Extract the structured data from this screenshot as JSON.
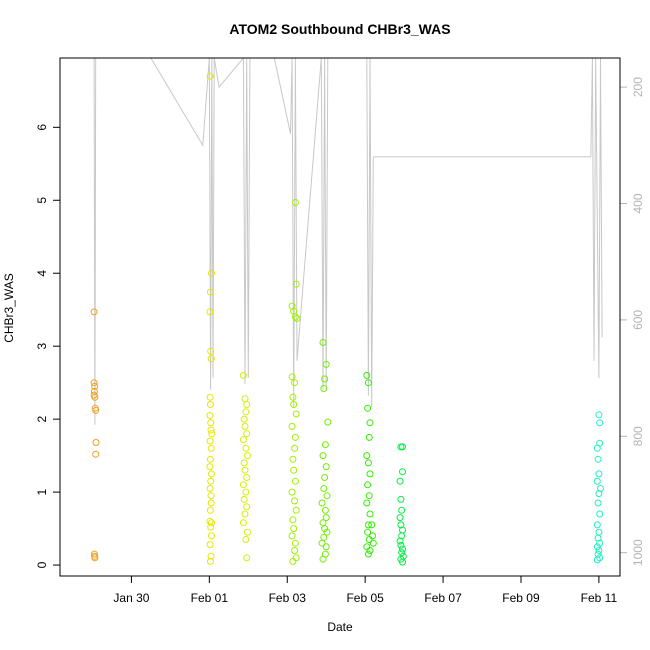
{
  "chart_data": {
    "type": "scatter",
    "title": "ATOM2 Southbound CHBr3_WAS",
    "xlabel": "Date",
    "ylabel": "CHBr3_WAS",
    "xlim": [
      "2016-01-28T04:00",
      "2016-02-11T13:00"
    ],
    "ylim": [
      -0.15,
      6.95
    ],
    "x_ticks": [
      {
        "date": "2016-01-30",
        "label": "Jan 30"
      },
      {
        "date": "2016-02-01",
        "label": "Feb 01"
      },
      {
        "date": "2016-02-03",
        "label": "Feb 03"
      },
      {
        "date": "2016-02-05",
        "label": "Feb 05"
      },
      {
        "date": "2016-02-07",
        "label": "Feb 07"
      },
      {
        "date": "2016-02-09",
        "label": "Feb 09"
      },
      {
        "date": "2016-02-11",
        "label": "Feb 11"
      }
    ],
    "y_ticks": [
      0,
      1,
      2,
      3,
      4,
      5,
      6
    ],
    "y2_axis": {
      "label": "",
      "range": [
        1040,
        150
      ],
      "ticks": [
        200,
        400,
        600,
        800,
        1000
      ],
      "color": "#b3b3b3"
    },
    "pressure_trace": {
      "color": "#c8c8c8",
      "points": [
        [
          "2016-01-29T01:00",
          150
        ],
        [
          "2016-01-29T01:30",
          780
        ],
        [
          "2016-01-29T02:00",
          150
        ],
        [
          "2016-01-30T12:00",
          150
        ],
        [
          "2016-01-31T20:00",
          300
        ],
        [
          "2016-02-01T00:00",
          150
        ],
        [
          "2016-02-01T00:45",
          720
        ],
        [
          "2016-02-01T01:30",
          150
        ],
        [
          "2016-02-01T02:15",
          700
        ],
        [
          "2016-02-01T03:00",
          150
        ],
        [
          "2016-02-01T06:00",
          200
        ],
        [
          "2016-02-01T21:00",
          150
        ],
        [
          "2016-02-01T22:00",
          710
        ],
        [
          "2016-02-01T23:00",
          150
        ],
        [
          "2016-02-02T00:00",
          700
        ],
        [
          "2016-02-02T01:00",
          150
        ],
        [
          "2016-02-02T16:00",
          150
        ],
        [
          "2016-02-03T02:00",
          280
        ],
        [
          "2016-02-03T03:00",
          150
        ],
        [
          "2016-02-03T04:00",
          750
        ],
        [
          "2016-02-03T05:00",
          150
        ],
        [
          "2016-02-03T06:00",
          670
        ],
        [
          "2016-02-03T21:00",
          150
        ],
        [
          "2016-02-03T22:00",
          720
        ],
        [
          "2016-02-03T23:00",
          150
        ],
        [
          "2016-02-04T00:00",
          720
        ],
        [
          "2016-02-04T01:00",
          150
        ],
        [
          "2016-02-05T01:00",
          150
        ],
        [
          "2016-02-05T02:00",
          730
        ],
        [
          "2016-02-05T03:00",
          150
        ],
        [
          "2016-02-05T04:00",
          750
        ],
        [
          "2016-02-05T05:00",
          320
        ],
        [
          "2016-02-10T19:00",
          320
        ],
        [
          "2016-02-10T20:00",
          150
        ],
        [
          "2016-02-10T21:00",
          670
        ],
        [
          "2016-02-10T22:00",
          150
        ],
        [
          "2016-02-11T00:00",
          700
        ],
        [
          "2016-02-11T01:00",
          150
        ],
        [
          "2016-02-11T02:00",
          630
        ]
      ]
    },
    "series": [
      {
        "color": "#f0a020",
        "points": [
          [
            "2016-01-29T01:00",
            3.47
          ],
          [
            "2016-01-29T01:00",
            2.5
          ],
          [
            "2016-01-29T01:20",
            2.45
          ],
          [
            "2016-01-29T01:10",
            2.38
          ],
          [
            "2016-01-29T01:00",
            2.33
          ],
          [
            "2016-01-29T01:30",
            2.3
          ],
          [
            "2016-01-29T01:40",
            2.15
          ],
          [
            "2016-01-29T02:00",
            2.12
          ],
          [
            "2016-01-29T02:10",
            1.68
          ],
          [
            "2016-01-29T02:00",
            1.52
          ],
          [
            "2016-01-29T01:10",
            0.15
          ],
          [
            "2016-01-29T01:20",
            0.12
          ],
          [
            "2016-01-29T01:30",
            0.1
          ]
        ]
      },
      {
        "color": "#e6e600",
        "points": [
          [
            "2016-02-01T00:30",
            6.7
          ],
          [
            "2016-02-01T01:20",
            4.0
          ],
          [
            "2016-02-01T00:40",
            3.74
          ],
          [
            "2016-02-01T00:20",
            3.47
          ],
          [
            "2016-02-01T00:50",
            2.93
          ],
          [
            "2016-02-01T01:10",
            2.83
          ],
          [
            "2016-02-01T00:30",
            2.3
          ],
          [
            "2016-02-01T00:40",
            2.2
          ],
          [
            "2016-02-01T00:20",
            2.05
          ],
          [
            "2016-02-01T00:50",
            1.95
          ],
          [
            "2016-02-01T01:00",
            1.85
          ],
          [
            "2016-02-01T00:30",
            1.7
          ],
          [
            "2016-02-01T01:10",
            1.6
          ],
          [
            "2016-02-01T00:40",
            1.45
          ],
          [
            "2016-02-01T00:20",
            1.35
          ],
          [
            "2016-02-01T01:20",
            1.25
          ],
          [
            "2016-02-01T00:50",
            1.15
          ],
          [
            "2016-02-01T00:30",
            1.05
          ],
          [
            "2016-02-01T01:00",
            0.95
          ],
          [
            "2016-02-01T01:10",
            0.85
          ],
          [
            "2016-02-01T00:40",
            0.75
          ],
          [
            "2016-02-01T00:20",
            0.6
          ],
          [
            "2016-02-01T00:50",
            0.52
          ],
          [
            "2016-02-01T01:20",
            0.4
          ],
          [
            "2016-02-01T00:30",
            0.28
          ],
          [
            "2016-02-01T01:00",
            0.12
          ],
          [
            "2016-02-01T00:40",
            0.05
          ],
          [
            "2016-02-01T01:30",
            1.8
          ],
          [
            "2016-02-01T01:20",
            0.58
          ]
        ]
      },
      {
        "color": "#d4f000",
        "points": [
          [
            "2016-02-01T21:00",
            2.6
          ],
          [
            "2016-02-01T22:00",
            2.28
          ],
          [
            "2016-02-01T23:00",
            2.2
          ],
          [
            "2016-02-01T22:30",
            2.1
          ],
          [
            "2016-02-01T21:30",
            2.0
          ],
          [
            "2016-02-01T22:00",
            1.9
          ],
          [
            "2016-02-01T23:00",
            1.8
          ],
          [
            "2016-02-01T21:00",
            1.72
          ],
          [
            "2016-02-01T22:30",
            1.6
          ],
          [
            "2016-02-01T23:30",
            1.5
          ],
          [
            "2016-02-01T21:30",
            1.4
          ],
          [
            "2016-02-01T22:00",
            1.3
          ],
          [
            "2016-02-01T23:00",
            1.2
          ],
          [
            "2016-02-01T21:00",
            1.1
          ],
          [
            "2016-02-01T22:30",
            1.0
          ],
          [
            "2016-02-01T21:30",
            0.9
          ],
          [
            "2016-02-01T23:00",
            0.8
          ],
          [
            "2016-02-01T22:00",
            0.7
          ],
          [
            "2016-02-01T21:00",
            0.58
          ],
          [
            "2016-02-01T23:30",
            0.45
          ],
          [
            "2016-02-01T22:30",
            0.35
          ],
          [
            "2016-02-01T23:00",
            0.1
          ]
        ]
      },
      {
        "color": "#a0f000",
        "points": [
          [
            "2016-02-03T05:00",
            4.97
          ],
          [
            "2016-02-03T05:30",
            3.85
          ],
          [
            "2016-02-03T03:00",
            3.55
          ],
          [
            "2016-02-03T04:00",
            3.48
          ],
          [
            "2016-02-03T05:00",
            3.4
          ],
          [
            "2016-02-03T06:00",
            3.38
          ],
          [
            "2016-02-03T03:00",
            2.58
          ],
          [
            "2016-02-03T04:30",
            2.5
          ],
          [
            "2016-02-03T05:30",
            2.07
          ],
          [
            "2016-02-03T03:30",
            2.3
          ],
          [
            "2016-02-03T04:00",
            2.2
          ],
          [
            "2016-02-03T03:00",
            1.9
          ],
          [
            "2016-02-03T05:00",
            1.75
          ],
          [
            "2016-02-03T04:30",
            1.6
          ],
          [
            "2016-02-03T03:30",
            1.45
          ],
          [
            "2016-02-03T04:00",
            1.3
          ],
          [
            "2016-02-03T05:00",
            1.15
          ],
          [
            "2016-02-03T03:00",
            1.0
          ],
          [
            "2016-02-03T04:30",
            0.88
          ],
          [
            "2016-02-03T05:30",
            0.75
          ],
          [
            "2016-02-03T03:30",
            0.62
          ],
          [
            "2016-02-03T04:00",
            0.5
          ],
          [
            "2016-02-03T03:00",
            0.4
          ],
          [
            "2016-02-03T05:00",
            0.3
          ],
          [
            "2016-02-03T04:30",
            0.2
          ],
          [
            "2016-02-03T05:30",
            0.1
          ],
          [
            "2016-02-03T03:30",
            0.05
          ]
        ]
      },
      {
        "color": "#70f000",
        "points": [
          [
            "2016-02-03T22:00",
            3.05
          ],
          [
            "2016-02-04T00:00",
            2.75
          ],
          [
            "2016-02-03T23:00",
            2.55
          ],
          [
            "2016-02-03T22:30",
            2.42
          ],
          [
            "2016-02-04T01:00",
            1.96
          ],
          [
            "2016-02-03T23:30",
            1.65
          ],
          [
            "2016-02-03T22:00",
            1.5
          ],
          [
            "2016-02-04T00:00",
            1.35
          ],
          [
            "2016-02-03T23:00",
            1.2
          ],
          [
            "2016-02-03T22:30",
            1.05
          ],
          [
            "2016-02-04T00:30",
            0.95
          ],
          [
            "2016-02-03T21:30",
            0.85
          ],
          [
            "2016-02-03T23:30",
            0.75
          ],
          [
            "2016-02-04T00:00",
            0.65
          ],
          [
            "2016-02-03T22:00",
            0.58
          ],
          [
            "2016-02-03T23:00",
            0.5
          ],
          [
            "2016-02-04T00:30",
            0.45
          ],
          [
            "2016-02-03T22:30",
            0.38
          ],
          [
            "2016-02-03T21:30",
            0.3
          ],
          [
            "2016-02-04T00:00",
            0.25
          ],
          [
            "2016-02-03T23:30",
            0.15
          ],
          [
            "2016-02-03T22:00",
            0.08
          ]
        ]
      },
      {
        "color": "#30f000",
        "points": [
          [
            "2016-02-05T01:00",
            2.6
          ],
          [
            "2016-02-05T02:00",
            2.5
          ],
          [
            "2016-02-05T01:30",
            2.15
          ],
          [
            "2016-02-05T03:00",
            1.95
          ],
          [
            "2016-02-05T02:30",
            1.75
          ],
          [
            "2016-02-05T01:00",
            1.5
          ],
          [
            "2016-02-05T02:00",
            1.4
          ],
          [
            "2016-02-05T03:00",
            1.25
          ],
          [
            "2016-02-05T01:30",
            1.1
          ],
          [
            "2016-02-05T02:30",
            0.95
          ],
          [
            "2016-02-05T01:00",
            0.85
          ],
          [
            "2016-02-05T03:00",
            0.7
          ],
          [
            "2016-02-05T02:00",
            0.55
          ],
          [
            "2016-02-05T01:30",
            0.45
          ],
          [
            "2016-02-05T02:30",
            0.35
          ],
          [
            "2016-02-05T01:00",
            0.25
          ],
          [
            "2016-02-05T03:00",
            0.2
          ],
          [
            "2016-02-05T02:00",
            0.15
          ],
          [
            "2016-02-05T04:00",
            0.55
          ],
          [
            "2016-02-05T04:30",
            0.4
          ],
          [
            "2016-02-05T05:00",
            0.3
          ]
        ]
      },
      {
        "color": "#00f040",
        "points": [
          [
            "2016-02-05T22:00",
            1.62
          ],
          [
            "2016-02-05T23:00",
            1.62
          ],
          [
            "2016-02-05T23:00",
            1.28
          ],
          [
            "2016-02-05T21:30",
            1.15
          ],
          [
            "2016-02-05T22:00",
            0.9
          ],
          [
            "2016-02-05T22:30",
            0.75
          ],
          [
            "2016-02-05T21:30",
            0.65
          ],
          [
            "2016-02-05T22:00",
            0.55
          ],
          [
            "2016-02-05T23:00",
            0.48
          ],
          [
            "2016-02-05T22:30",
            0.4
          ],
          [
            "2016-02-05T21:30",
            0.33
          ],
          [
            "2016-02-05T22:00",
            0.27
          ],
          [
            "2016-02-05T23:00",
            0.22
          ],
          [
            "2016-02-05T22:30",
            0.17
          ],
          [
            "2016-02-05T23:30",
            0.12
          ],
          [
            "2016-02-05T22:00",
            0.08
          ],
          [
            "2016-02-05T23:00",
            0.04
          ]
        ]
      },
      {
        "color": "#20f0c0",
        "points": [
          [
            "2016-02-11T00:00",
            2.06
          ],
          [
            "2016-02-11T00:30",
            1.95
          ],
          [
            "2016-02-10T23:00",
            1.6
          ],
          [
            "2016-02-11T00:30",
            1.67
          ],
          [
            "2016-02-10T23:30",
            1.45
          ],
          [
            "2016-02-11T00:00",
            1.25
          ],
          [
            "2016-02-10T23:00",
            1.15
          ],
          [
            "2016-02-11T01:00",
            1.05
          ],
          [
            "2016-02-11T00:00",
            0.98
          ],
          [
            "2016-02-10T23:30",
            0.85
          ],
          [
            "2016-02-11T00:30",
            0.7
          ],
          [
            "2016-02-10T23:00",
            0.55
          ],
          [
            "2016-02-11T00:00",
            0.45
          ],
          [
            "2016-02-10T23:30",
            0.37
          ],
          [
            "2016-02-11T00:30",
            0.3
          ],
          [
            "2016-02-10T23:00",
            0.25
          ],
          [
            "2016-02-11T00:00",
            0.2
          ],
          [
            "2016-02-10T23:30",
            0.15
          ],
          [
            "2016-02-11T00:30",
            0.1
          ],
          [
            "2016-02-10T23:00",
            0.07
          ]
        ]
      }
    ]
  }
}
